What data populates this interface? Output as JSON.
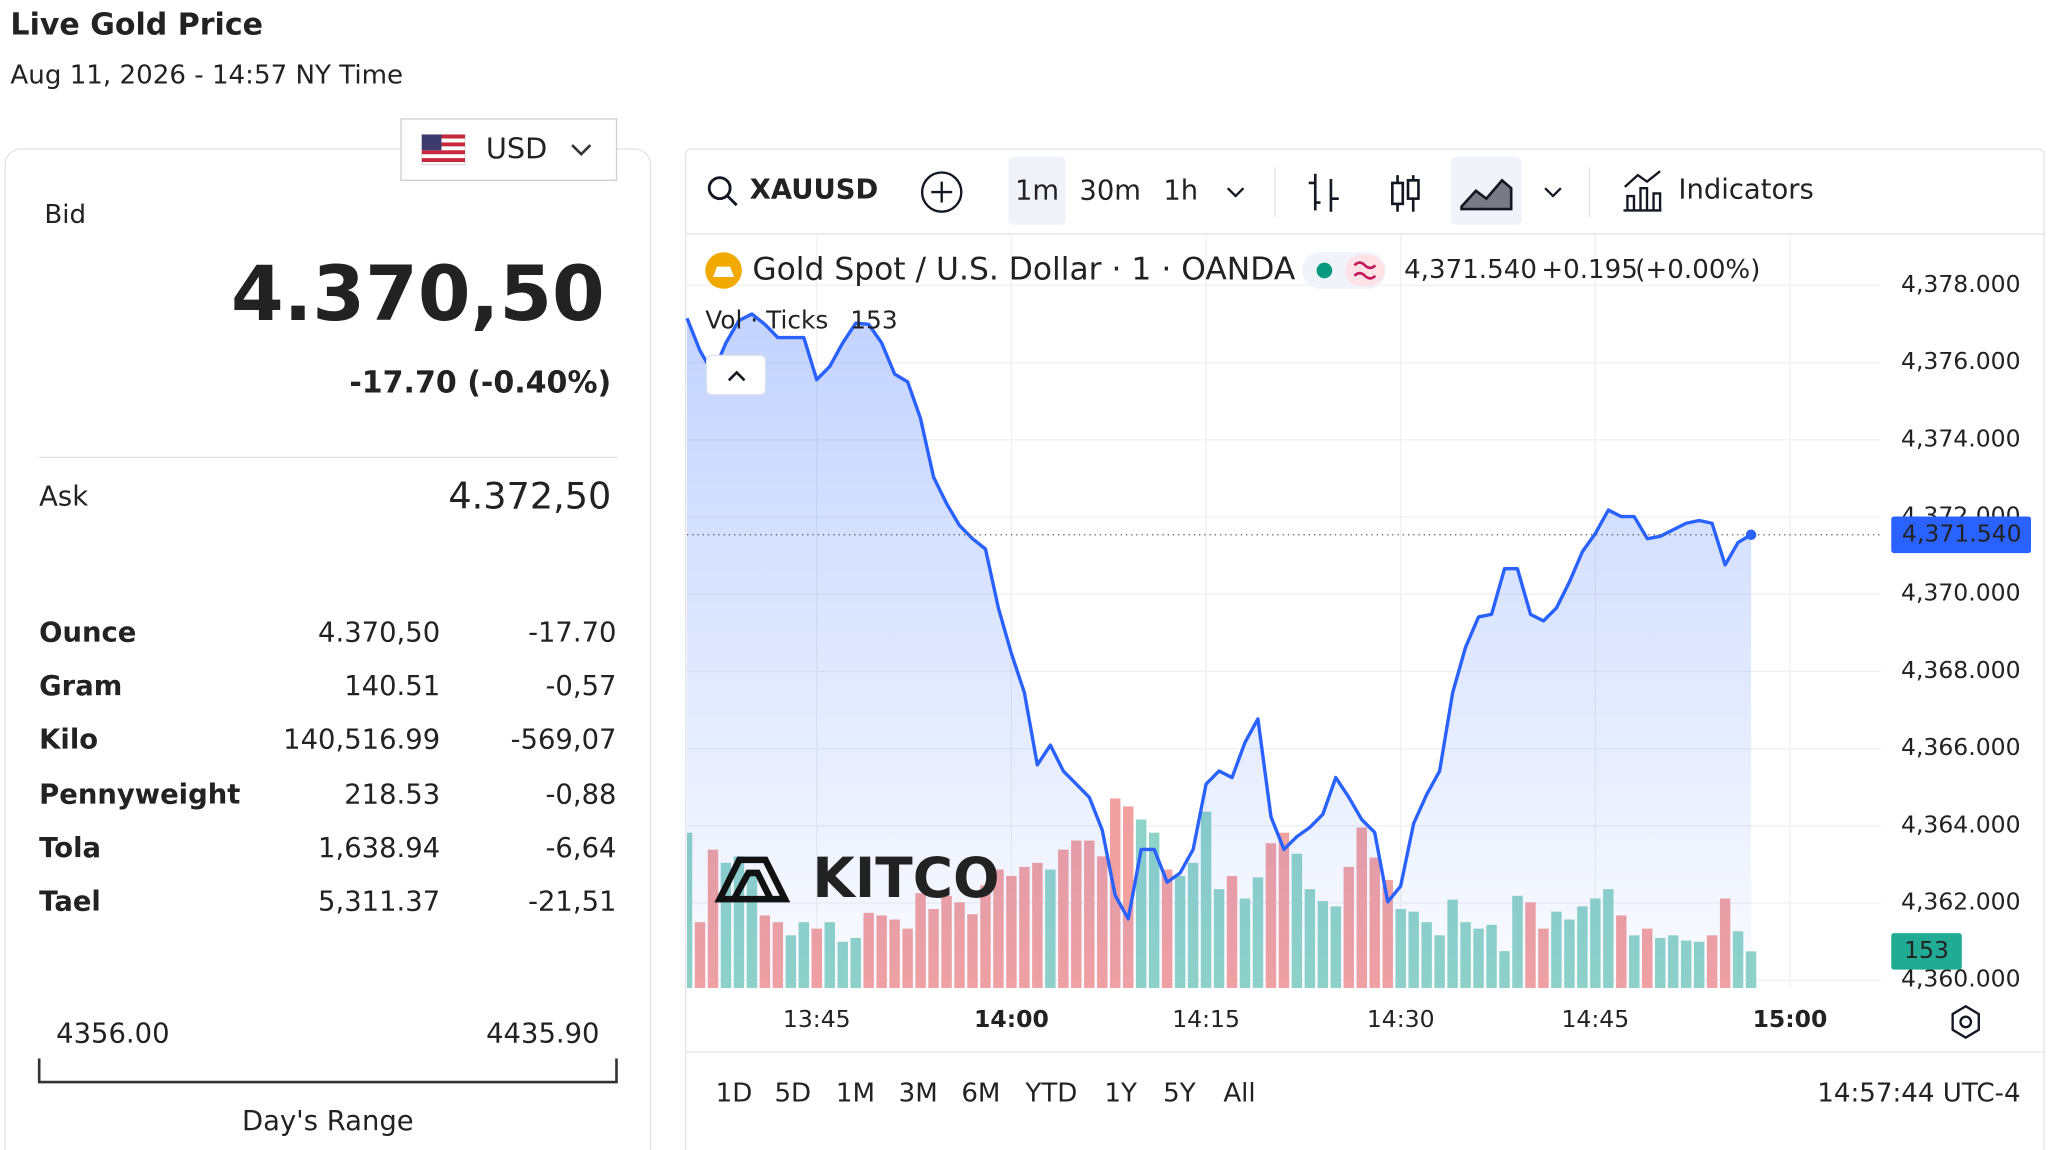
{
  "header": {
    "title": "Live Gold Price",
    "subtitle": "Aug 11, 2026 - 14:57 NY Time"
  },
  "currency": "USD",
  "quote": {
    "bid_label": "Bid",
    "bid": "4.370,50",
    "change": "-17.70 (-0.40%)",
    "ask_label": "Ask",
    "ask": "4.372,50"
  },
  "table": {
    "rows": [
      [
        "Ounce",
        "4.370,50",
        "-17.70"
      ],
      [
        "Gram",
        "140.51",
        "-0,57"
      ],
      [
        "Kilo",
        "140,516.99",
        "-569,07"
      ],
      [
        "Pennyweight",
        "218.53",
        "-0,88"
      ],
      [
        "Tola",
        "1,638.94",
        "-6,64"
      ],
      [
        "Tael",
        "5,311.37",
        "-21,51"
      ]
    ]
  },
  "range": {
    "low": "4356.00",
    "high": "4435.90",
    "label": "Day's Range"
  },
  "toolbar": {
    "symbol": "XAUUSD",
    "intervals": [
      "1m",
      "30m",
      "1h"
    ],
    "indicators": "Indicators"
  },
  "chart_data": {
    "type": "line",
    "title": "Gold Spot / U.S. Dollar · 1 · OANDA",
    "price_label": "4,371.540",
    "change_label": "+0.195",
    "change_pct_label": "(+0.00%)",
    "volume_title": "Vol · Ticks",
    "logo": "KITCO",
    "x": [
      "13:35",
      "13:36",
      "13:37",
      "13:38",
      "13:39",
      "13:40",
      "13:41",
      "13:42",
      "13:43",
      "13:44",
      "13:45",
      "13:46",
      "13:47",
      "13:48",
      "13:49",
      "13:50",
      "13:51",
      "13:52",
      "13:53",
      "13:54",
      "13:55",
      "13:56",
      "13:57",
      "13:58",
      "13:59",
      "14:00",
      "14:01",
      "14:02",
      "14:03",
      "14:04",
      "14:05",
      "14:06",
      "14:07",
      "14:08",
      "14:09",
      "14:10",
      "14:11",
      "14:12",
      "14:13",
      "14:14",
      "14:15",
      "14:16",
      "14:17",
      "14:18",
      "14:19",
      "14:20",
      "14:21",
      "14:22",
      "14:23",
      "14:24",
      "14:25",
      "14:26",
      "14:27",
      "14:28",
      "14:29",
      "14:30",
      "14:31",
      "14:32",
      "14:33",
      "14:34",
      "14:35",
      "14:36",
      "14:37",
      "14:38",
      "14:39",
      "14:40",
      "14:41",
      "14:42",
      "14:43",
      "14:44",
      "14:45",
      "14:46",
      "14:47",
      "14:48",
      "14:49",
      "14:50",
      "14:51",
      "14:52",
      "14:53",
      "14:54",
      "14:55",
      "14:56",
      "14:57"
    ],
    "xlim": [
      "13:35",
      "15:07"
    ],
    "xticks": [
      "13:45",
      "14:00",
      "14:15",
      "14:30",
      "14:45",
      "15:00"
    ],
    "ylim": [
      4359.8,
      4379.3
    ],
    "yticks": [
      {
        "value": 4360,
        "label": "4,360.000"
      },
      {
        "value": 4362,
        "label": "4,362.000"
      },
      {
        "value": 4364,
        "label": "4,364.000"
      },
      {
        "value": 4366,
        "label": "4,366.000"
      },
      {
        "value": 4368,
        "label": "4,368.000"
      },
      {
        "value": 4370,
        "label": "4,370.000"
      },
      {
        "value": 4372,
        "label": "4,372.000"
      },
      {
        "value": 4374,
        "label": "4,374.000"
      },
      {
        "value": 4376,
        "label": "4,376.000"
      },
      {
        "value": 4378,
        "label": "4,378.000"
      }
    ],
    "grid": true,
    "series": [
      {
        "name": "XAUUSD",
        "color": "#2962ff",
        "values": [
          4377.15,
          4376.31,
          4375.73,
          4376.51,
          4377.09,
          4377.26,
          4376.99,
          4376.65,
          4376.65,
          4376.65,
          4375.56,
          4375.9,
          4376.51,
          4377.02,
          4376.99,
          4376.51,
          4375.7,
          4375.5,
          4374.55,
          4373.03,
          4372.35,
          4371.78,
          4371.44,
          4371.17,
          4369.64,
          4368.46,
          4367.45,
          4365.58,
          4366.09,
          4365.42,
          4365.08,
          4364.74,
          4363.89,
          4362.2,
          4361.59,
          4363.39,
          4363.39,
          4362.54,
          4362.78,
          4363.39,
          4365.08,
          4365.42,
          4365.25,
          4366.16,
          4366.77,
          4364.23,
          4363.39,
          4363.72,
          4363.96,
          4364.3,
          4365.25,
          4364.74,
          4364.16,
          4363.83,
          4362.03,
          4362.44,
          4364.06,
          4364.81,
          4365.42,
          4367.45,
          4368.63,
          4369.41,
          4369.48,
          4370.66,
          4370.66,
          4369.48,
          4369.31,
          4369.64,
          4370.32,
          4371.1,
          4371.57,
          4372.18,
          4372.01,
          4372.01,
          4371.44,
          4371.5,
          4371.67,
          4371.84,
          4371.91,
          4371.84,
          4370.76,
          4371.34,
          4371.54
        ]
      }
    ],
    "volume": {
      "color_up": "#8fd3c8",
      "color_down": "#f2a1a1",
      "label_color": "#22ab94",
      "values": [
        649,
        275,
        578,
        523,
        550,
        468,
        303,
        275,
        220,
        275,
        248,
        275,
        193,
        209,
        314,
        303,
        286,
        248,
        396,
        330,
        385,
        358,
        308,
        429,
        495,
        468,
        506,
        523,
        495,
        578,
        616,
        616,
        550,
        792,
        759,
        704,
        649,
        495,
        468,
        523,
        737,
        413,
        468,
        374,
        462,
        605,
        649,
        561,
        413,
        363,
        341,
        506,
        671,
        545,
        451,
        330,
        319,
        275,
        220,
        369,
        275,
        248,
        264,
        154,
        385,
        358,
        248,
        319,
        286,
        341,
        374,
        413,
        303,
        220,
        248,
        209,
        220,
        198,
        193,
        220,
        374,
        237,
        153
      ]
    }
  },
  "footer": {
    "ranges": [
      "1D",
      "5D",
      "1M",
      "3M",
      "6M",
      "YTD",
      "1Y",
      "5Y",
      "All"
    ],
    "time": "14:57:44 UTC-4"
  }
}
